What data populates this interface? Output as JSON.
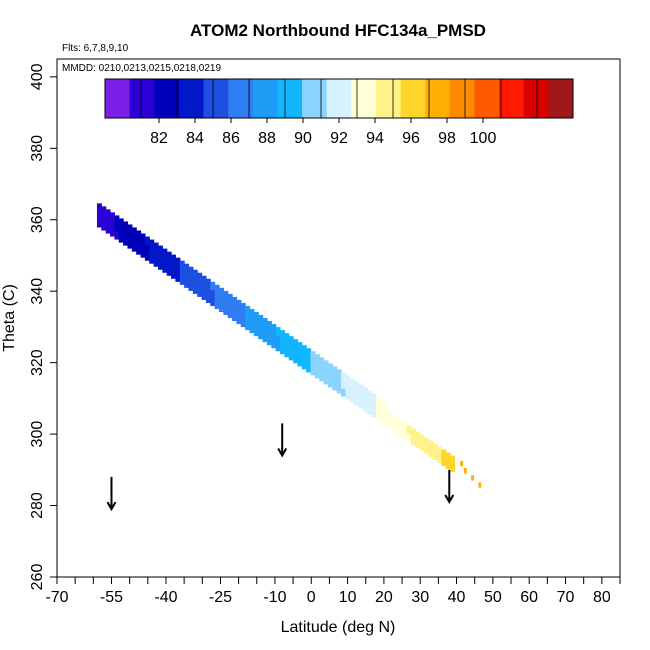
{
  "chart_data": {
    "type": "heatmap",
    "title": "ATOM2 Northbound HFC134a_PMSD",
    "annotations": {
      "flights": "Flts: 6,7,8,9,10",
      "dates": "MMDD: 0210,0213,0215,0218,0219"
    },
    "xlabel": "Latitude (deg N)",
    "ylabel": "Theta (C)",
    "xlim": [
      -70,
      85
    ],
    "ylim": [
      260,
      405
    ],
    "x_ticks_major": [
      -70,
      -55,
      -40,
      -25,
      -10,
      0,
      10,
      20,
      30,
      40,
      50,
      60,
      70,
      80
    ],
    "x_ticks_minor": [
      -65,
      -60,
      -50,
      -45,
      -35,
      -30,
      -20,
      -15,
      -5,
      5,
      15,
      25,
      35,
      45,
      55,
      65,
      75,
      85
    ],
    "y_ticks": [
      260,
      280,
      300,
      320,
      340,
      360,
      380,
      400
    ],
    "colorbar": {
      "min": 79,
      "max": 105,
      "step": 2,
      "tick_labels": [
        82,
        84,
        86,
        88,
        90,
        92,
        94,
        96,
        98,
        100
      ],
      "colors": [
        "#7a1fe6",
        "#2a00d4",
        "#0000b8",
        "#0018c8",
        "#1f4fe0",
        "#2f7df0",
        "#1f9cf6",
        "#12b6ff",
        "#8ad4ff",
        "#d8f1ff",
        "#ffffd8",
        "#fff28a",
        "#ffd52a",
        "#ffb000",
        "#ff8a00",
        "#ff5a00",
        "#ff1a00",
        "#d80000",
        "#a01818"
      ]
    },
    "band": {
      "lat_start": -59,
      "lat_end": 39,
      "theta_top_start": 364,
      "theta_top_end": 293,
      "theta_bottom_start": 358,
      "theta_bottom_end": 289,
      "value_start": 81,
      "value_end": 96,
      "sparse_points": [
        {
          "lat": 41,
          "theta": 291,
          "value": 97
        },
        {
          "lat": 42,
          "theta": 289,
          "value": 98
        },
        {
          "lat": 44,
          "theta": 287,
          "value": 98
        },
        {
          "lat": 46,
          "theta": 285,
          "value": 98
        }
      ]
    },
    "arrows": [
      {
        "lat": -55,
        "theta": 289
      },
      {
        "lat": -8,
        "theta": 304
      },
      {
        "lat": 38,
        "theta": 291
      }
    ]
  }
}
